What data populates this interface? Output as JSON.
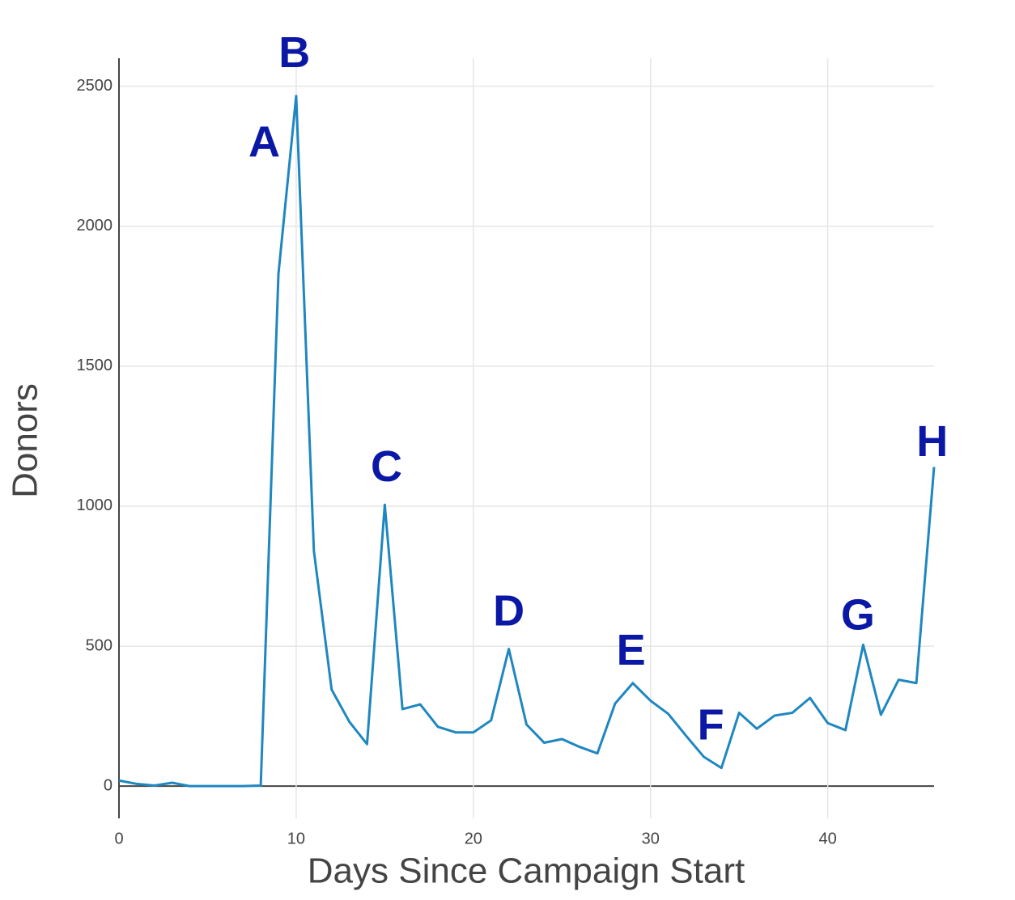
{
  "chart_data": {
    "type": "line",
    "x_label": "Days Since Campaign Start",
    "y_label": "Donors",
    "x": [
      0,
      1,
      2,
      3,
      4,
      5,
      6,
      7,
      8,
      9,
      10,
      11,
      12,
      13,
      14,
      15,
      16,
      17,
      18,
      19,
      20,
      21,
      22,
      23,
      24,
      25,
      26,
      27,
      28,
      29,
      30,
      31,
      32,
      33,
      34,
      35,
      36,
      37,
      38,
      39,
      40,
      41,
      42,
      43,
      44,
      45,
      46
    ],
    "values": [
      20,
      8,
      2,
      12,
      0,
      0,
      0,
      0,
      2,
      1830,
      2465,
      840,
      345,
      230,
      150,
      1005,
      275,
      292,
      212,
      192,
      192,
      235,
      490,
      220,
      155,
      168,
      140,
      117,
      295,
      368,
      305,
      258,
      180,
      105,
      65,
      262,
      205,
      252,
      262,
      315,
      225,
      200,
      505,
      255,
      380,
      368,
      1140
    ],
    "color": "#1f87c0",
    "xlim": [
      0,
      46
    ],
    "ylim": [
      -115,
      2600
    ],
    "xticks": [
      0,
      10,
      20,
      30,
      40
    ],
    "yticks": [
      0,
      500,
      1000,
      1500,
      2000,
      2500
    ],
    "grid": true,
    "annotations": [
      "A",
      "B",
      "C",
      "D",
      "E",
      "F",
      "G",
      "H"
    ]
  }
}
